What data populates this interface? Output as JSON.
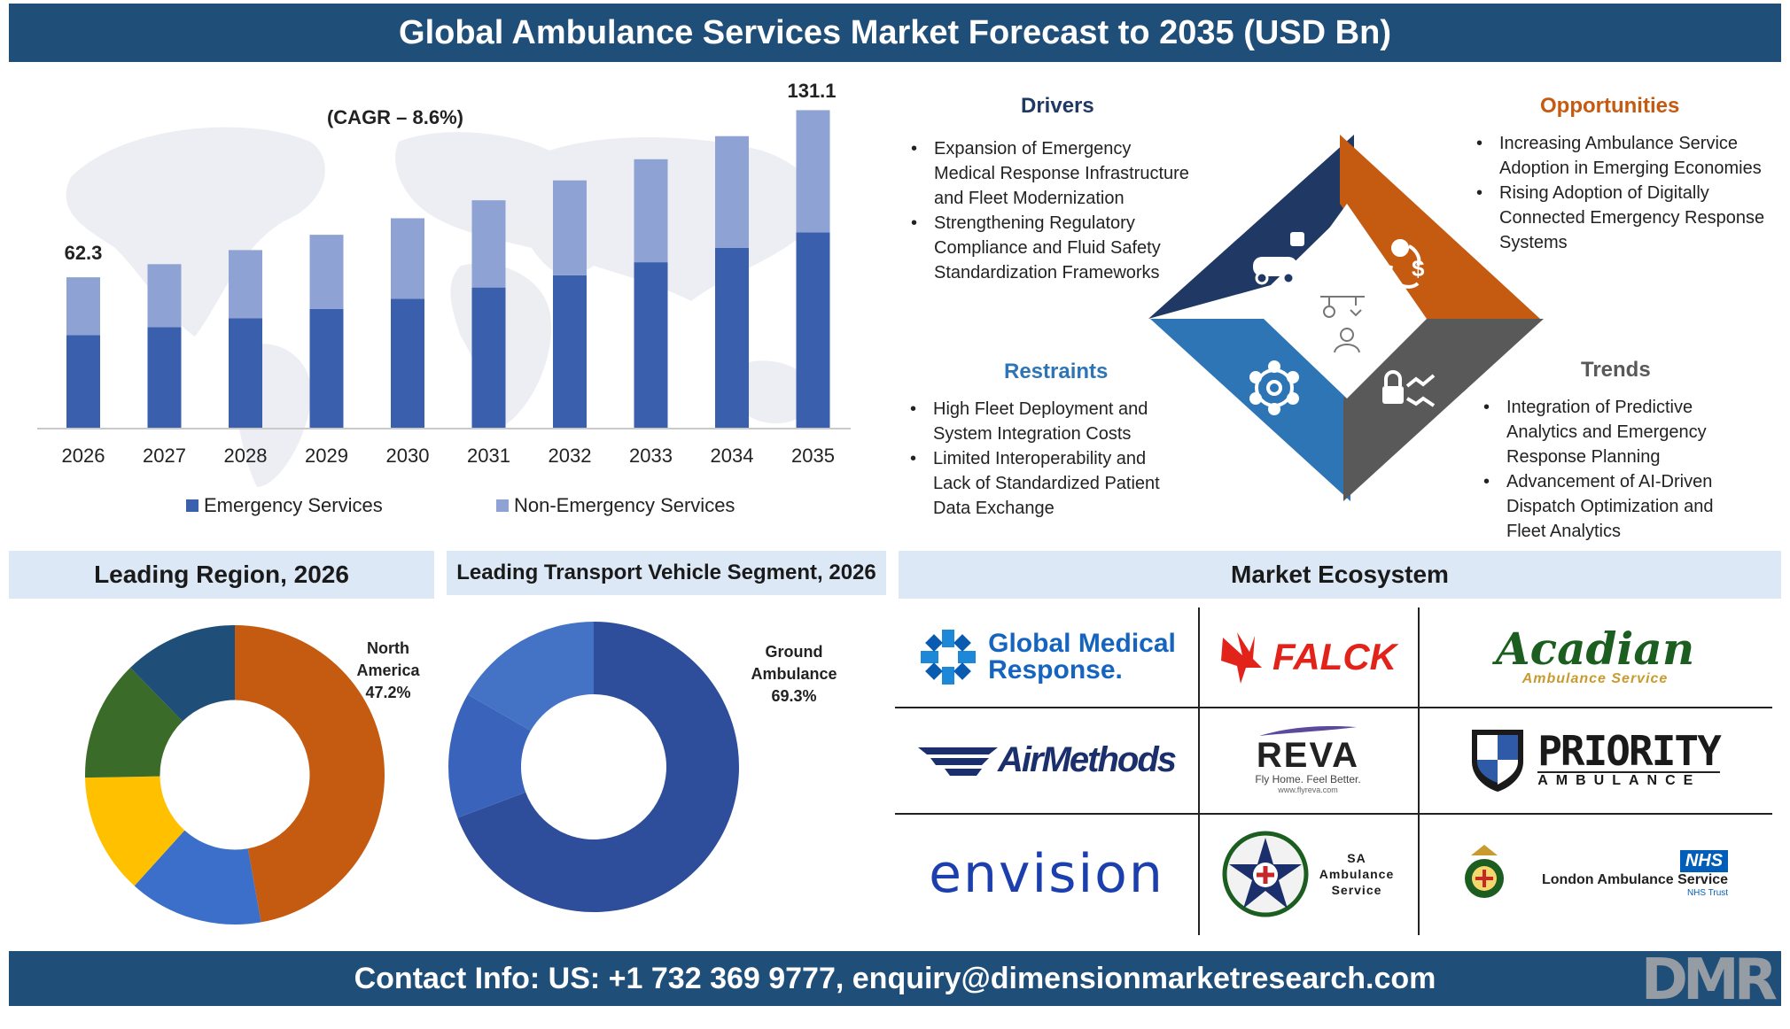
{
  "header": {
    "title": "Global Ambulance Services Market Forecast to 2035 (USD Bn)"
  },
  "footer": {
    "contact": "Contact Info: US: +1 732 369 9777, enquiry@dimensionmarketresearch.com",
    "logo_text": "DMR"
  },
  "chart_data": [
    {
      "type": "bar",
      "stacked": true,
      "categories": [
        "2026",
        "2027",
        "2028",
        "2029",
        "2030",
        "2031",
        "2032",
        "2033",
        "2034",
        "2035"
      ],
      "series": [
        {
          "name": "Emergency Services",
          "values": [
            38.5,
            41.8,
            45.4,
            49.3,
            53.5,
            58.1,
            63.1,
            68.5,
            74.4,
            80.8
          ],
          "color": "#3a5fad"
        },
        {
          "name": "Non-Emergency Services",
          "values": [
            23.8,
            25.9,
            28.1,
            30.5,
            33.1,
            35.9,
            39.1,
            42.4,
            46.0,
            50.3
          ],
          "color": "#8ea2d4"
        }
      ],
      "data_labels": {
        "2026": "62.3",
        "2035": "131.1"
      },
      "annotation": "(CAGR – 8.6%)",
      "ylim": [
        0,
        140
      ]
    },
    {
      "type": "pie",
      "title": "Leading Region, 2026",
      "hole": 0.5,
      "slices": [
        {
          "value": 47.2,
          "color": "#c55a11"
        },
        {
          "value": 14.5,
          "color": "#3c6fc9"
        },
        {
          "value": 13.0,
          "color": "#ffc000"
        },
        {
          "value": 13.0,
          "color": "#3b6b28"
        },
        {
          "value": 12.3,
          "color": "#1f4e79"
        }
      ],
      "label": {
        "region": "North",
        "region2": "America",
        "value": "47.2%"
      }
    },
    {
      "type": "pie",
      "title": "Leading Transport Vehicle Segment, 2026",
      "hole": 0.5,
      "slices": [
        {
          "value": 69.3,
          "color": "#2e4d9b"
        },
        {
          "value": 14.0,
          "color": "#3a64bc"
        },
        {
          "value": 16.7,
          "color": "#4472c4"
        }
      ],
      "label": {
        "segment": "Ground",
        "segment2": "Ambulance",
        "value": "69.3%"
      }
    }
  ],
  "drivers": {
    "title": "Drivers",
    "items": [
      "Expansion of Emergency Medical Response Infrastructure and Fleet Modernization",
      "Strengthening Regulatory Compliance and Fluid Safety Standardization Frameworks"
    ]
  },
  "opportunities": {
    "title": "Opportunities",
    "items": [
      "Increasing Ambulance Service Adoption in Emerging Economies",
      "Rising Adoption of Digitally Connected Emergency Response Systems"
    ]
  },
  "restraints": {
    "title": "Restraints",
    "items": [
      "High Fleet Deployment and System Integration Costs",
      "Limited Interoperability and Lack of Standardized Patient Data Exchange"
    ]
  },
  "trends": {
    "title": "Trends",
    "items": [
      "Integration of Predictive Analytics and Emergency Response Planning",
      "Advancement of AI-Driven Dispatch Optimization and Fleet Analytics"
    ]
  },
  "colors": {
    "drivers": "#1f3864",
    "opportunities": "#c55a11",
    "restraints": "#2e75b6",
    "trends": "#595959"
  },
  "sections": {
    "region": "Leading Region, 2026",
    "segment": "Leading Transport Vehicle Segment, 2026",
    "ecosystem": "Market Ecosystem"
  },
  "ecosystem": {
    "gmr": {
      "line1": "Global Medical",
      "line2": "Response."
    },
    "falck": "FALCK",
    "acadian": {
      "line1": "Acadian",
      "line2": "Ambulance Service"
    },
    "airmethods": "AirMethods",
    "reva": {
      "name": "REVA",
      "tag": "Fly Home. Feel Better.",
      "url": "www.flyreva.com"
    },
    "priority": {
      "line1": "PRIORITY",
      "line2": "AMBULANCE"
    },
    "envision": "envision",
    "sa": {
      "line1": "SA",
      "line2": "Ambulance",
      "line3": "Service"
    },
    "london": {
      "badge": "NHS",
      "name": "London Ambulance Service",
      "sub": "NHS Trust"
    }
  }
}
